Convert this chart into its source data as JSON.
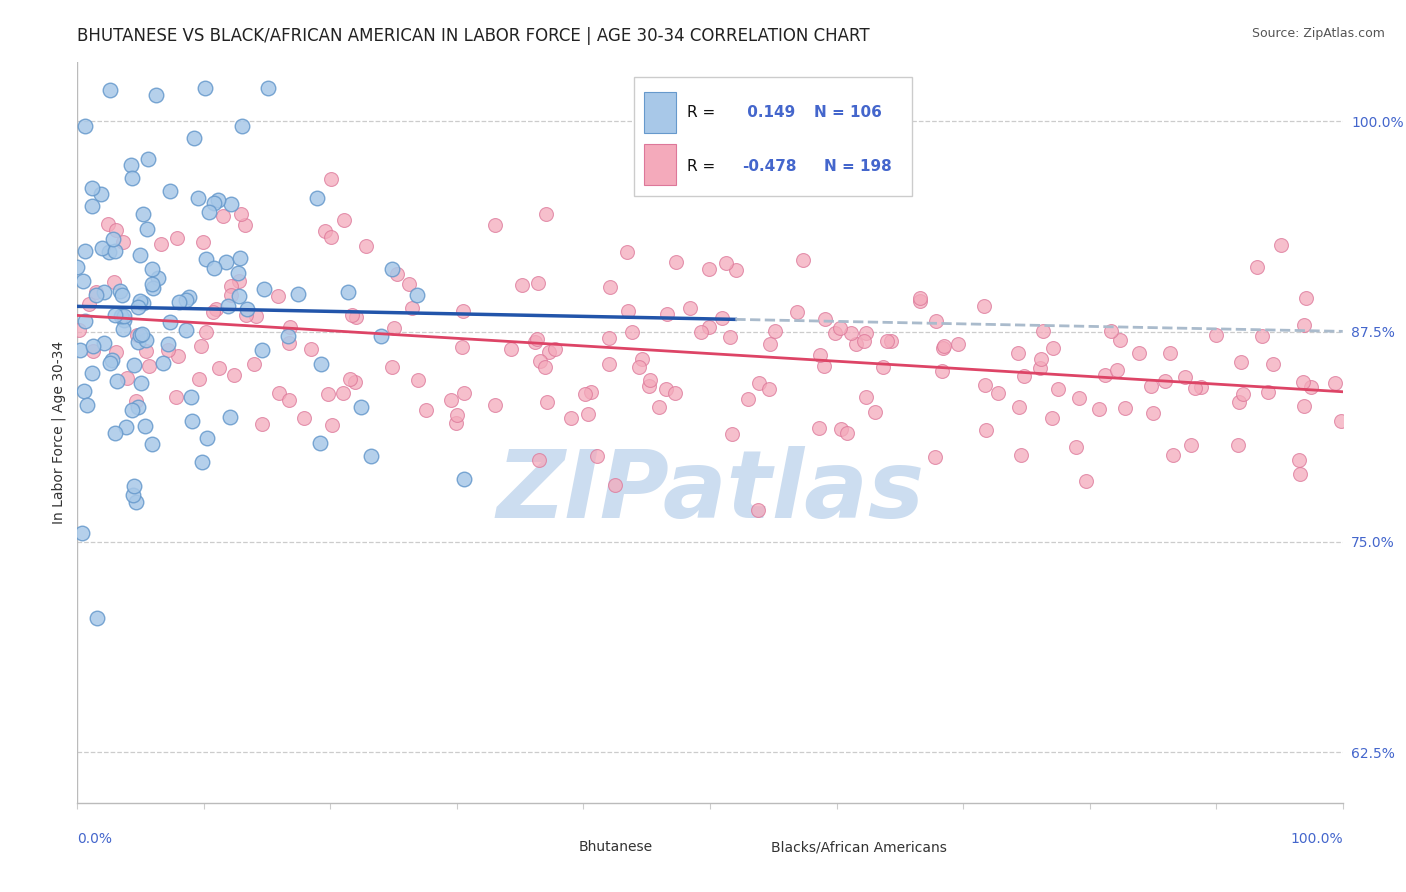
{
  "title": "BHUTANESE VS BLACK/AFRICAN AMERICAN IN LABOR FORCE | AGE 30-34 CORRELATION CHART",
  "source": "Source: ZipAtlas.com",
  "ylabel": "In Labor Force | Age 30-34",
  "xlim": [
    0.0,
    1.0
  ],
  "ylim": [
    0.595,
    1.035
  ],
  "yticks": [
    0.625,
    0.75,
    0.875,
    1.0
  ],
  "ytick_labels": [
    "62.5%",
    "75.0%",
    "87.5%",
    "100.0%"
  ],
  "blue_color": "#A8C8E8",
  "blue_edge_color": "#6699CC",
  "pink_color": "#F4AABB",
  "pink_edge_color": "#DD7799",
  "blue_line_color": "#2255AA",
  "pink_line_color": "#DD4466",
  "gray_dash_color": "#AABBCC",
  "watermark_color": "#CCDDF0",
  "tick_color": "#4466CC",
  "title_fontsize": 12,
  "label_fontsize": 10,
  "tick_fontsize": 10,
  "background_color": "#FFFFFF",
  "legend": {
    "r1_label": "R = ",
    "r1_value": " 0.149",
    "n1_value": "N = 106",
    "r2_label": "R = ",
    "r2_value": "-0.478",
    "n2_value": "N = 198"
  }
}
